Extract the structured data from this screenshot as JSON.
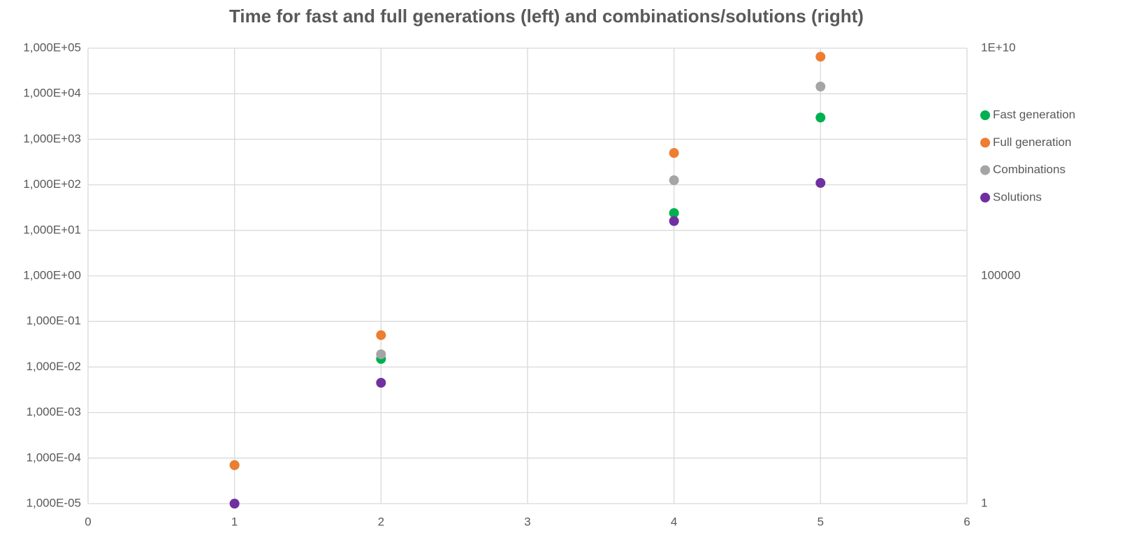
{
  "chart_data": {
    "type": "scatter",
    "title": "Time for fast and full generations (left) and combinations/solutions (right)",
    "xlim": [
      0,
      6
    ],
    "xticks": [
      0,
      1,
      2,
      3,
      4,
      5,
      6
    ],
    "ylim": [
      1e-05,
      100000
    ],
    "yscale": "log",
    "yticks": [
      {
        "value": 1e-05,
        "label": "1,000E-05"
      },
      {
        "value": 0.0001,
        "label": "1,000E-04"
      },
      {
        "value": 0.001,
        "label": "1,000E-03"
      },
      {
        "value": 0.01,
        "label": "1,000E-02"
      },
      {
        "value": 0.1,
        "label": "1,000E-01"
      },
      {
        "value": 1,
        "label": "1,000E+00"
      },
      {
        "value": 10,
        "label": "1,000E+01"
      },
      {
        "value": 100,
        "label": "1,000E+02"
      },
      {
        "value": 1000,
        "label": "1,000E+03"
      },
      {
        "value": 10000,
        "label": "1,000E+04"
      },
      {
        "value": 100000,
        "label": "1,000E+05"
      }
    ],
    "y2lim": [
      1,
      10000000000
    ],
    "y2scale": "log",
    "y2ticks": [
      1,
      100000,
      {
        "value": 10000000000,
        "label": "1E+10"
      }
    ],
    "grid": true,
    "legend": "right",
    "series": [
      {
        "name": "Fast generation",
        "color": "#00b050",
        "x": [
          1,
          2,
          4,
          5
        ],
        "values": [
          7e-05,
          0.015,
          24,
          3000
        ]
      },
      {
        "name": "Full generation",
        "color": "#ed7d31",
        "x": [
          1,
          2,
          4,
          5
        ],
        "values": [
          7e-05,
          0.05,
          500,
          65000
        ]
      },
      {
        "name": "Combinations",
        "color": "#a5a5a5",
        "axis": "y2",
        "x": [
          1,
          2,
          4,
          5
        ],
        "values": [
          1,
          1900,
          12600000,
          1440000000
        ]
      },
      {
        "name": "Solutions",
        "color": "#7030a0",
        "axis": "y2",
        "x": [
          1,
          2,
          4,
          5
        ],
        "values": [
          1,
          450,
          1600000,
          11000000
        ]
      }
    ]
  }
}
